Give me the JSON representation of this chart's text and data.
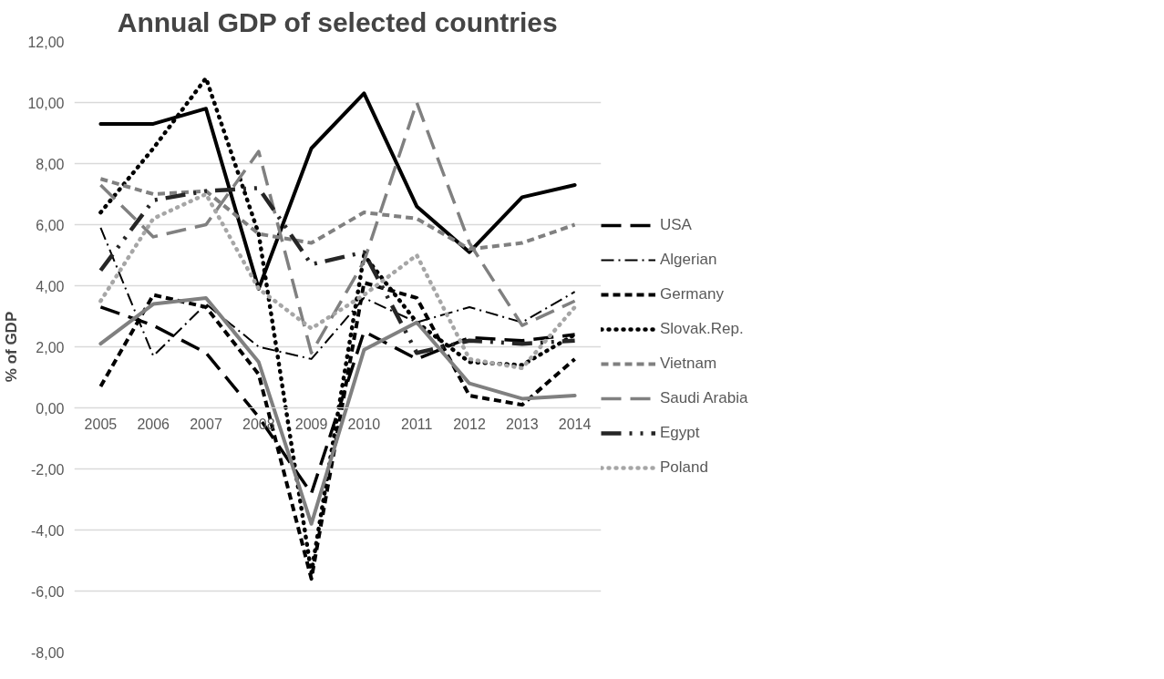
{
  "chart_data": {
    "type": "line",
    "title": "Annual GDP of selected countries",
    "ylabel": "% of GDP",
    "categories": [
      "2005",
      "2006",
      "2007",
      "2008",
      "2009",
      "2010",
      "2011",
      "2012",
      "2013",
      "2014"
    ],
    "ylim": [
      -8,
      12
    ],
    "yticks": [
      {
        "value": -8,
        "label": "-8,00"
      },
      {
        "value": -6,
        "label": "-6,00"
      },
      {
        "value": -4,
        "label": "-4,00"
      },
      {
        "value": -2,
        "label": "-2,00"
      },
      {
        "value": 0,
        "label": "0,00"
      },
      {
        "value": 2,
        "label": "2,00"
      },
      {
        "value": 4,
        "label": "4,00"
      },
      {
        "value": 6,
        "label": "6,00"
      },
      {
        "value": 8,
        "label": "8,00"
      },
      {
        "value": 10,
        "label": "10,00"
      },
      {
        "value": 12,
        "label": "12,00"
      }
    ],
    "grid": "y",
    "legend": "right",
    "series": [
      {
        "color": "#000000",
        "line_style": "solid",
        "values": [
          9.3,
          9.3,
          9.8,
          3.9,
          8.5,
          10.3,
          6.6,
          5.1,
          6.9,
          7.3
        ]
      },
      {
        "name": "USA",
        "color": "#000000",
        "line_style": "longdash",
        "values": [
          3.3,
          2.7,
          1.8,
          -0.3,
          -2.8,
          2.5,
          1.6,
          2.3,
          2.2,
          2.4
        ]
      },
      {
        "name": "Algerian",
        "color": "#000000",
        "line_style": "dashdot",
        "values": [
          5.9,
          1.7,
          3.4,
          2.0,
          1.6,
          3.6,
          2.8,
          3.3,
          2.8,
          3.8
        ]
      },
      {
        "name": "Germany",
        "color": "#000000",
        "line_style": "dashed",
        "values": [
          0.7,
          3.7,
          3.3,
          1.1,
          -5.6,
          4.1,
          3.6,
          0.4,
          0.1,
          1.6
        ]
      },
      {
        "name": "Slovak.Rep.",
        "color": "#000000",
        "line_style": "dotted",
        "values": [
          6.4,
          8.5,
          10.8,
          5.7,
          -5.4,
          5.0,
          2.8,
          1.5,
          1.4,
          2.4
        ]
      },
      {
        "name": "Vietnam",
        "color": "#808080",
        "line_style": "dashed",
        "values": [
          7.5,
          7.0,
          7.1,
          5.7,
          5.4,
          6.4,
          6.2,
          5.2,
          5.4,
          6.0
        ]
      },
      {
        "name": "Saudi Arabia",
        "color": "#808080",
        "line_style": "longdash",
        "values": [
          7.3,
          5.6,
          6.0,
          8.4,
          1.8,
          4.8,
          10.0,
          5.4,
          2.7,
          3.5
        ]
      },
      {
        "name": "Egypt",
        "color": "#262626",
        "line_style": "dashdotdot",
        "values": [
          4.5,
          6.8,
          7.1,
          7.2,
          4.7,
          5.1,
          1.8,
          2.2,
          2.1,
          2.2
        ]
      },
      {
        "name": "Poland",
        "color": "#a6a6a6",
        "line_style": "dotted",
        "values": [
          3.5,
          6.2,
          7.0,
          3.9,
          2.6,
          3.7,
          5.0,
          1.6,
          1.3,
          3.3
        ]
      },
      {
        "color": "#808080",
        "line_style": "solid",
        "values": [
          2.1,
          3.4,
          3.6,
          1.5,
          -3.8,
          1.9,
          2.8,
          0.8,
          0.3,
          0.4
        ]
      }
    ]
  }
}
